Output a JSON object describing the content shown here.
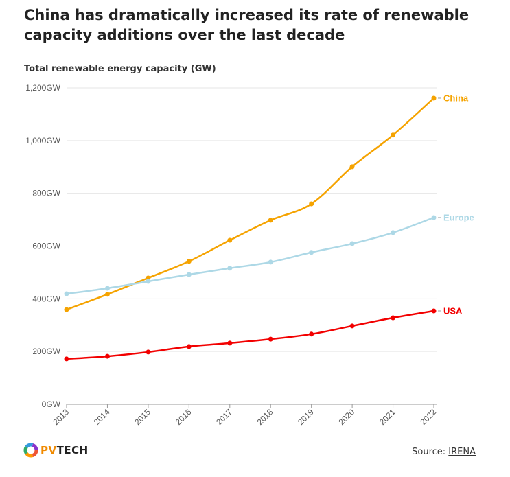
{
  "title": "China has dramatically increased its rate of renewable capacity additions over the last decade",
  "subtitle": "Total renewable energy capacity (GW)",
  "logo": {
    "text_pv": "PV",
    "text_tech": "TECH"
  },
  "source": {
    "label": "Source:",
    "link": "IRENA"
  },
  "chart_data": {
    "type": "line",
    "title": "China has dramatically increased its rate of renewable capacity additions over the last decade",
    "ylabel": "Total renewable energy capacity (GW)",
    "x": [
      "2013",
      "2014",
      "2015",
      "2016",
      "2017",
      "2018",
      "2019",
      "2020",
      "2021",
      "2022"
    ],
    "ylim": [
      0,
      1200
    ],
    "yticks": [
      0,
      200,
      400,
      600,
      800,
      1000,
      1200
    ],
    "ytick_labels": [
      "0GW",
      "200GW",
      "400GW",
      "600GW",
      "800GW",
      "1,000GW",
      "1,200GW"
    ],
    "grid": true,
    "legend": "direct labels at line ends (right)",
    "series": [
      {
        "name": "China",
        "color": "#f5a300",
        "values": [
          359,
          417,
          479,
          542,
          622,
          698,
          760,
          901,
          1021,
          1161
        ]
      },
      {
        "name": "Europe",
        "color": "#add8e6",
        "values": [
          419,
          440,
          466,
          492,
          516,
          539,
          576,
          609,
          651,
          708
        ]
      },
      {
        "name": "USA",
        "color": "#f20000",
        "values": [
          172,
          182,
          198,
          219,
          232,
          247,
          266,
          297,
          328,
          354
        ]
      }
    ]
  }
}
